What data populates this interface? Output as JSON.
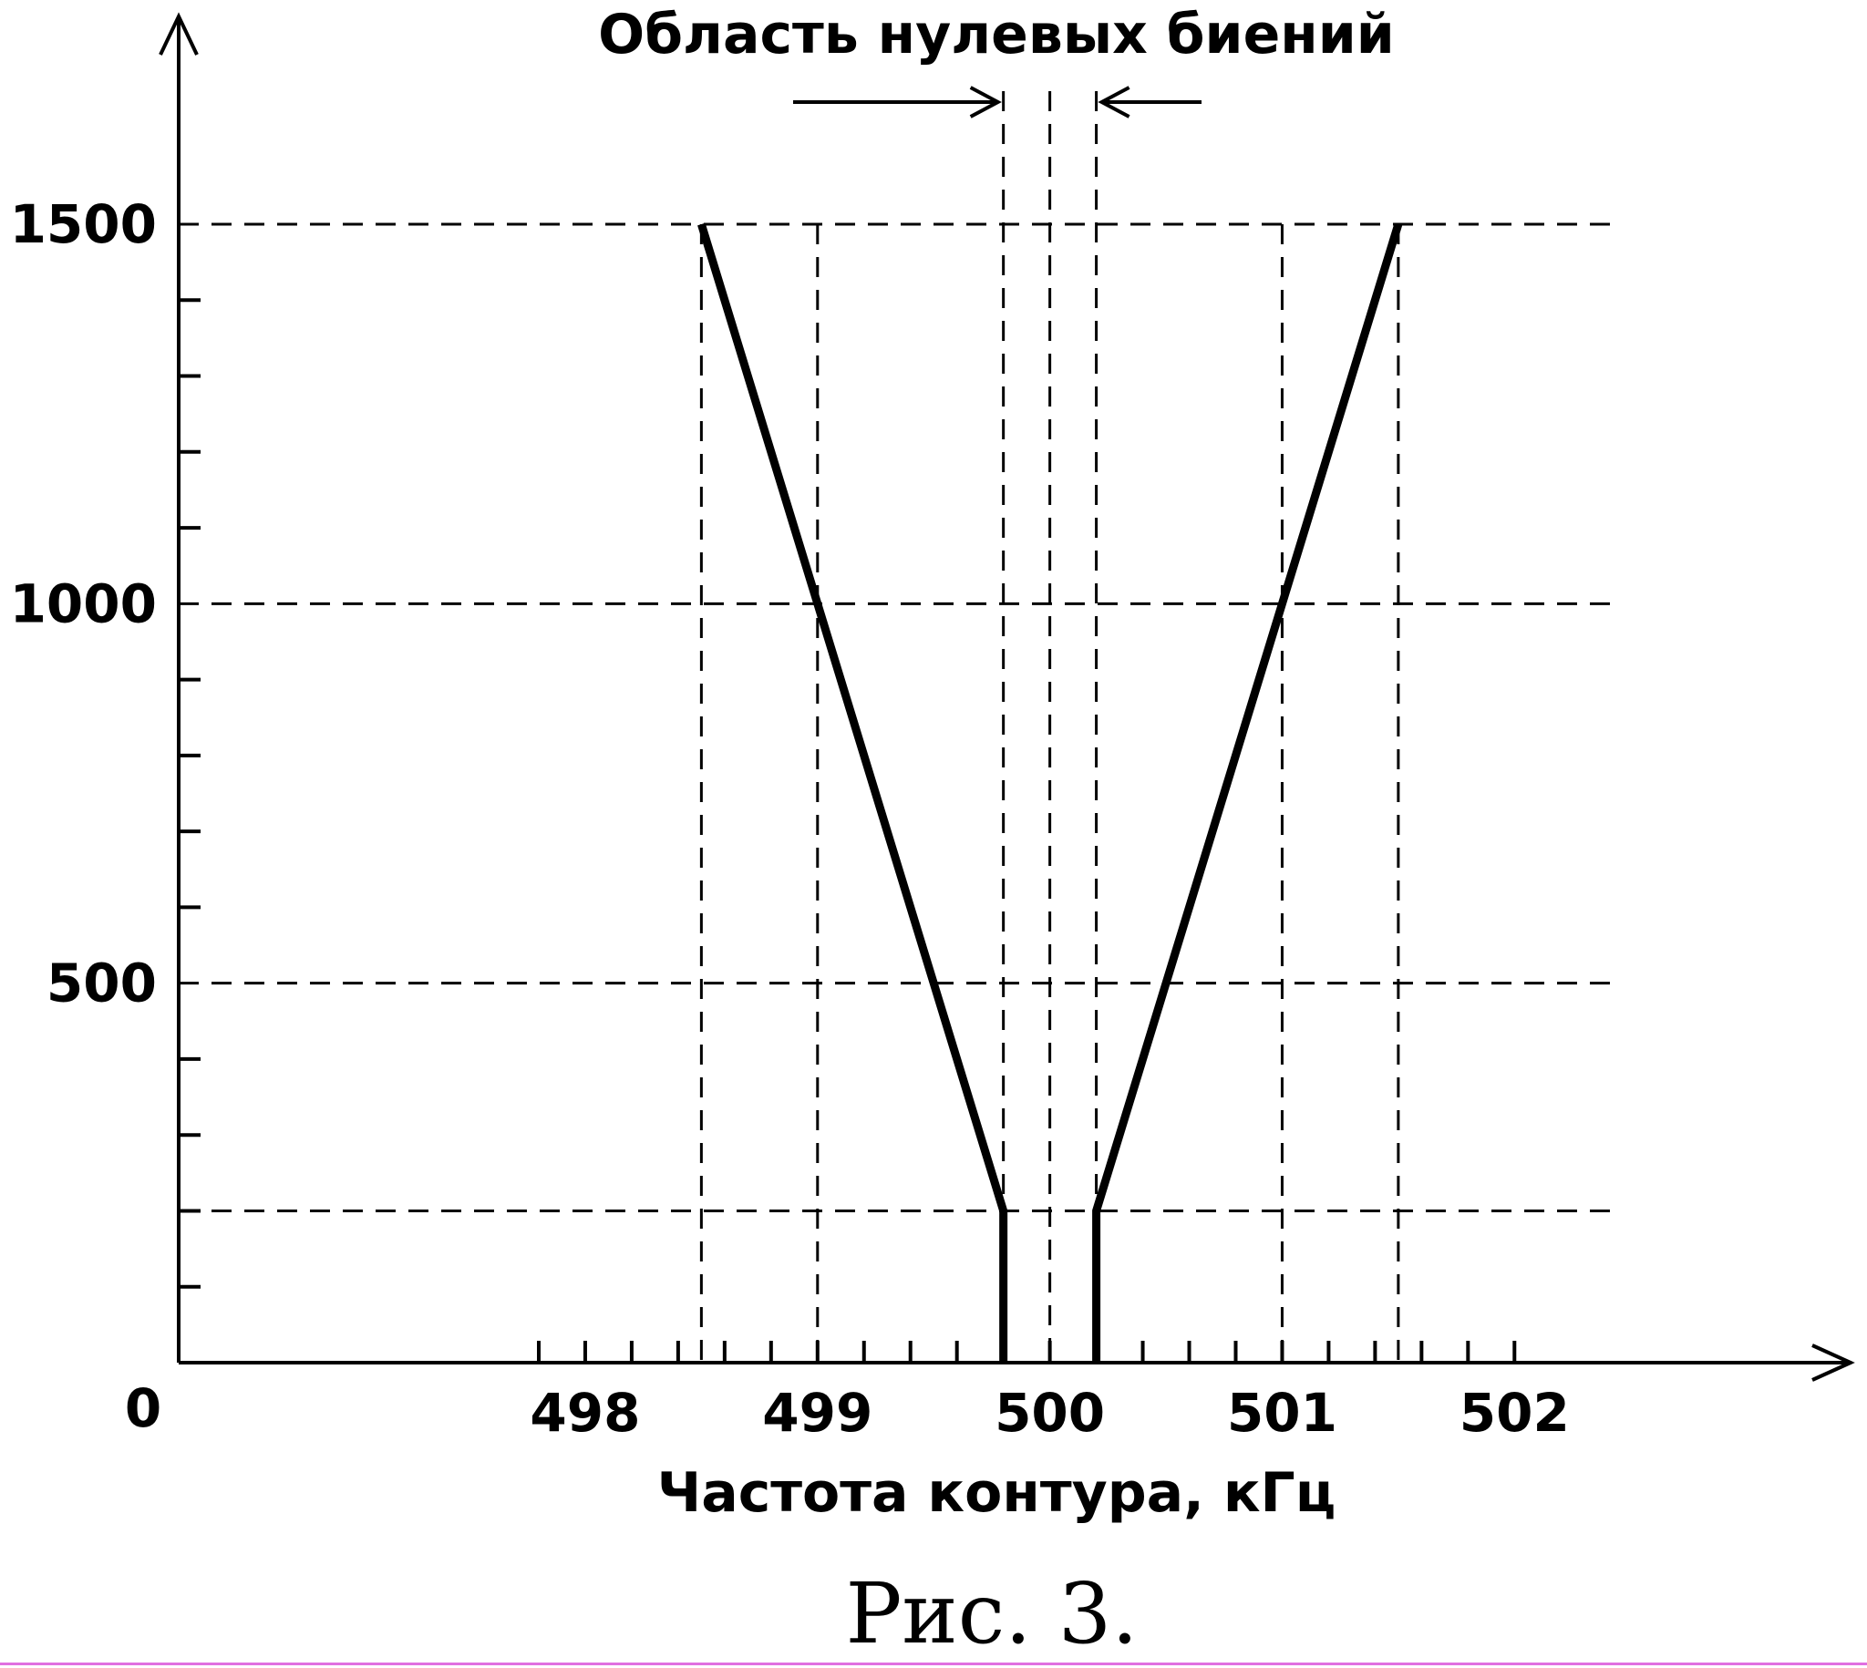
{
  "chart_data": {
    "type": "line",
    "title": "Область нулевых биений",
    "xlabel": "Частота контура, кГц",
    "ylabel": "",
    "origin_label": "0",
    "caption": "Рис. 3.",
    "x_ticks": [
      498,
      499,
      500,
      501,
      502
    ],
    "y_ticks": [
      500,
      1000,
      1500
    ],
    "xlim": [
      496.25,
      502.25
    ],
    "ylim": [
      0,
      1500
    ],
    "x_minor_step": 0.2,
    "y_minor_step": 100,
    "grid_x": [
      498.5,
      499,
      499.8,
      500,
      500.2,
      501,
      501.5
    ],
    "grid_y": [
      200,
      500,
      1000,
      1500
    ],
    "zero_beat_region": [
      499.8,
      500.2
    ],
    "series": [
      {
        "points": [
          [
            498.5,
            1500
          ],
          [
            499.8,
            200
          ],
          [
            499.8,
            0
          ]
        ]
      },
      {
        "points": [
          [
            500.2,
            0
          ],
          [
            500.2,
            200
          ],
          [
            501.5,
            1500
          ]
        ]
      }
    ],
    "colors": {
      "line": "#000000",
      "background": "#ffffff"
    }
  }
}
